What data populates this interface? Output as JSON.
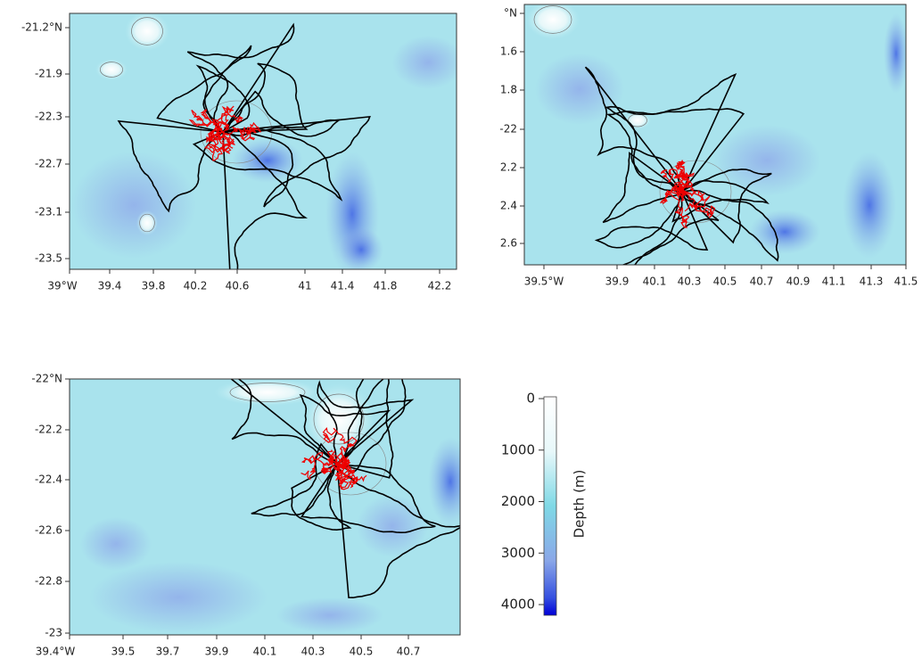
{
  "panels": [
    {
      "xticks": [
        "39°W",
        "39.4",
        "39.8",
        "40.2",
        "40.6",
        "41",
        "41.4",
        "41.8",
        "42.2"
      ],
      "yticks": [
        "-21.2°N",
        "-21.9",
        "-22.3",
        "-22.7",
        "-23.1",
        "-23.5"
      ]
    },
    {
      "xticks": [
        "39.5°W",
        "39.9",
        "40.1",
        "40.3",
        "40.5",
        "40.7",
        "40.9",
        "41.1",
        "41.3",
        "41.5"
      ],
      "yticks": [
        "°N",
        "1.6",
        "1.8",
        "-22",
        "2.2",
        "2.4",
        "2.6"
      ]
    },
    {
      "xticks": [
        "39.4°W",
        "39.5",
        "39.7",
        "39.9",
        "40.1",
        "40.3",
        "40.5",
        "40.7"
      ],
      "yticks": [
        "-22°N",
        "-22.2",
        "-22.4",
        "-22.6",
        "-22.8",
        "-23"
      ]
    }
  ],
  "colorbar": {
    "label": "Depth (m)",
    "ticks": [
      0,
      1000,
      2000,
      3000,
      4000
    ]
  }
}
